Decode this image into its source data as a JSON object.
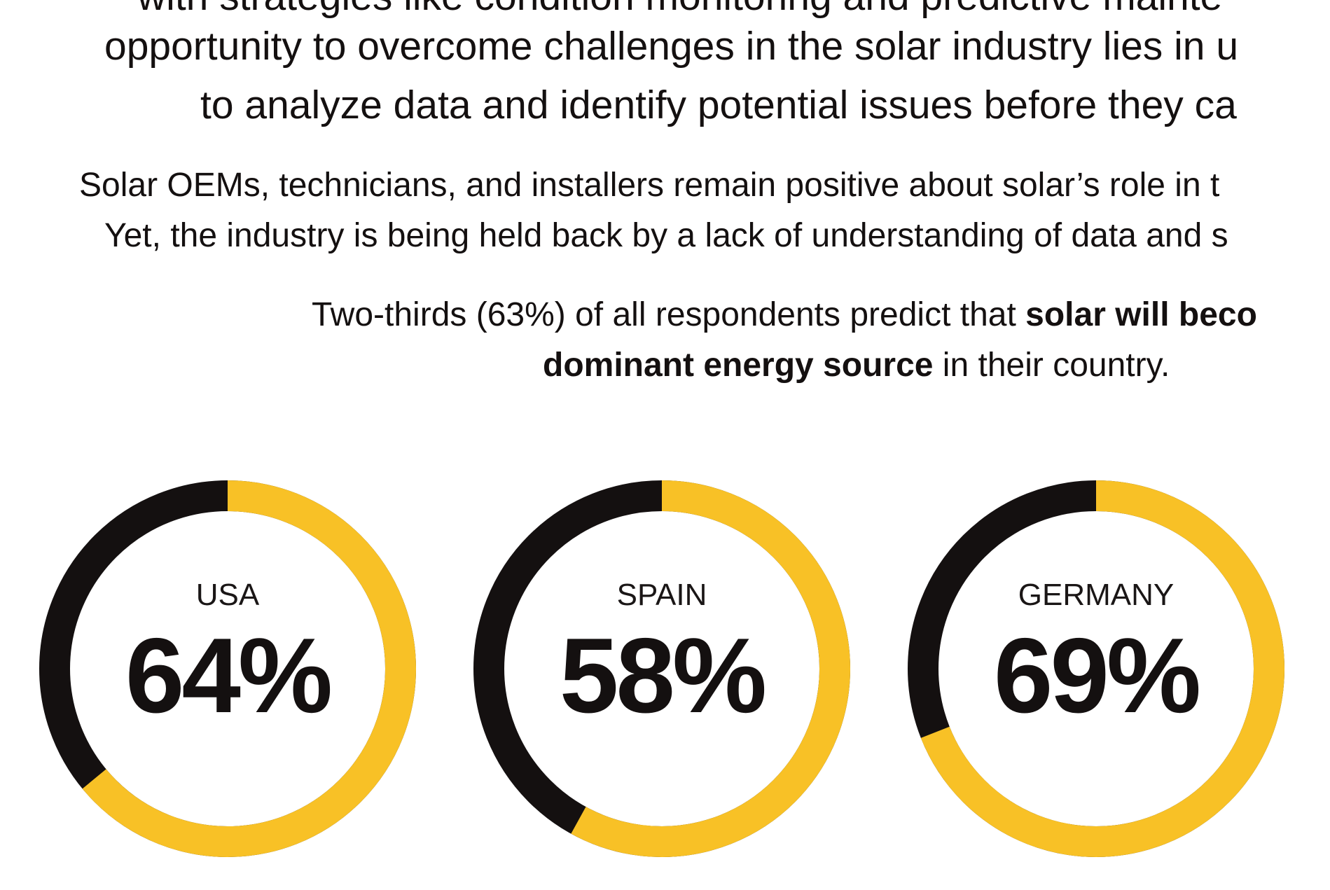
{
  "intro_paragraph": {
    "lines": [
      "with strategies like condition monitoring and predictive mainte",
      "opportunity to overcome challenges in the solar industry lies in u",
      "to analyze data and identify potential issues before they ca"
    ]
  },
  "context_paragraph": {
    "lines": [
      "Solar OEMs, technicians, and installers remain positive about solar’s role in t",
      "Yet, the industry is being held back by a lack of understanding of data and s"
    ]
  },
  "headline_stat": {
    "line1_prefix": "Two-thirds (63%) of all respondents predict that ",
    "line1_bold": "solar will beco",
    "line2_bold": "dominant energy source",
    "line2_suffix": " in their country."
  },
  "colors": {
    "accent_yellow": "#F8C126",
    "dark": "#141010",
    "text": "#141010",
    "background": "#FFFFFF"
  },
  "chart_data": {
    "type": "pie",
    "style": "donut",
    "categories": [
      "USA",
      "SPAIN",
      "GERMANY"
    ],
    "values": [
      64,
      58,
      69
    ],
    "value_labels": [
      "64%",
      "58%",
      "69%"
    ],
    "unit": "%",
    "series": [
      {
        "color": "#F8C126",
        "values": [
          64,
          58,
          69
        ]
      },
      {
        "color": "#141010",
        "values": [
          36,
          42,
          31
        ]
      }
    ]
  }
}
